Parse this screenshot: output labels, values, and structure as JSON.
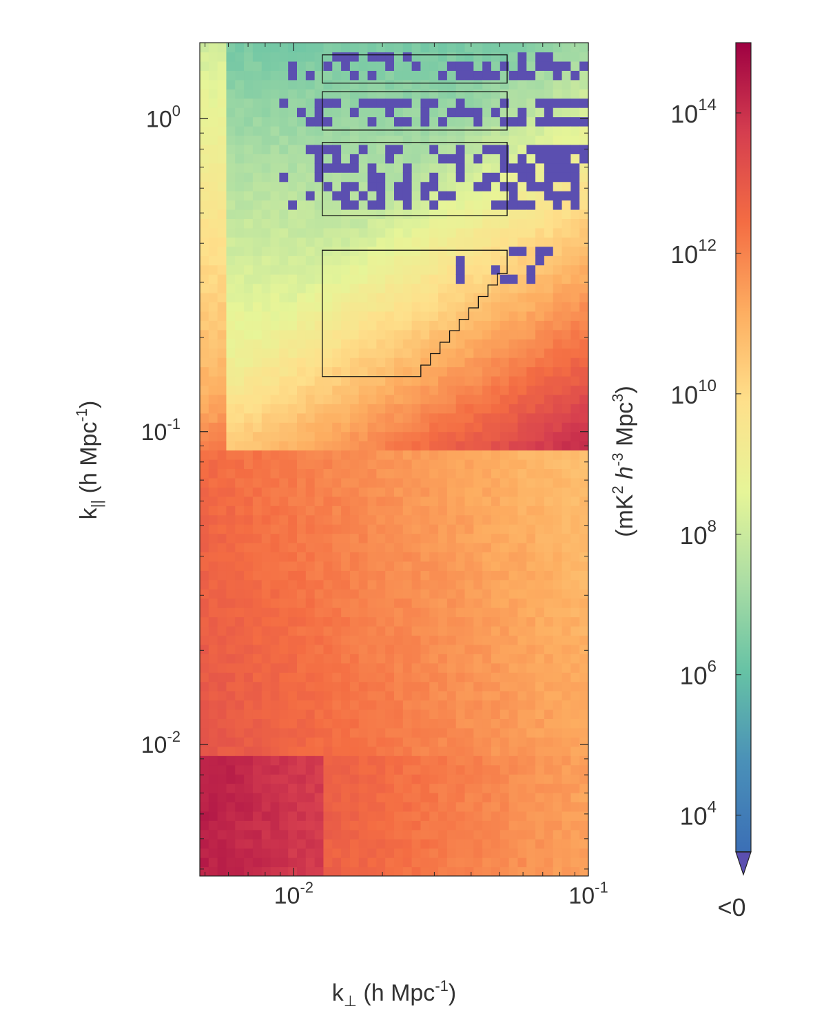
{
  "chart_data": {
    "type": "heatmap",
    "title": "",
    "xlabel": {
      "main": "k",
      "sub": "⊥",
      "rest": " (h Mpc",
      "sup": "-1",
      "close": ")"
    },
    "ylabel": {
      "main": "k",
      "sub": "||",
      "rest": " (h Mpc",
      "sup": "-1",
      "close": ")"
    },
    "x_scale": "log",
    "y_scale": "log",
    "xlim": [
      0.0048,
      0.1
    ],
    "ylim": [
      0.0038,
      1.75
    ],
    "x_ticks": [
      {
        "base": "10",
        "exp": "-2",
        "value": 0.01
      },
      {
        "base": "10",
        "exp": "-1",
        "value": 0.1
      }
    ],
    "y_ticks": [
      {
        "base": "10",
        "exp": "-2",
        "value": 0.01
      },
      {
        "base": "10",
        "exp": "-1",
        "value": 0.1
      },
      {
        "base": "10",
        "exp": "0",
        "value": 1
      }
    ],
    "grid": false,
    "colorbar": {
      "label": {
        "a": "(mK",
        "a_sup": "2",
        "b": " h",
        "b_sup": "-3",
        "c": " Mpc",
        "c_sup": "3",
        "d": ")"
      },
      "scale": "log",
      "range": [
        3000,
        1000000000000000.0
      ],
      "ticks": [
        {
          "base": "10",
          "exp": "4",
          "value": 10000
        },
        {
          "base": "10",
          "exp": "6",
          "value": 1000000
        },
        {
          "base": "10",
          "exp": "8",
          "value": 100000000
        },
        {
          "base": "10",
          "exp": "10",
          "value": 10000000000
        },
        {
          "base": "10",
          "exp": "12",
          "value": 1000000000000
        },
        {
          "base": "10",
          "exp": "14",
          "value": 100000000000000
        }
      ],
      "under_label": "<0",
      "under_color": "#5b4fb0",
      "colormap": [
        "#3b6fb6",
        "#4a90b8",
        "#66c2a5",
        "#abdda4",
        "#e6f598",
        "#fee08b",
        "#fdae61",
        "#f46d43",
        "#d53e4f",
        "#9e0142"
      ]
    },
    "boxes": [
      {
        "name": "window-box-1",
        "kperp": [
          0.0125,
          0.053
        ],
        "kpar": [
          1.3,
          1.6
        ]
      },
      {
        "name": "window-box-2",
        "kperp": [
          0.0125,
          0.053
        ],
        "kpar": [
          0.92,
          1.22
        ]
      },
      {
        "name": "window-box-3",
        "kperp": [
          0.0125,
          0.053
        ],
        "kpar": [
          0.49,
          0.84
        ]
      },
      {
        "name": "window-box-4",
        "kperp": [
          0.0125,
          0.053
        ],
        "kpar": [
          0.15,
          0.38
        ],
        "stepped_right_edge": true
      }
    ]
  }
}
